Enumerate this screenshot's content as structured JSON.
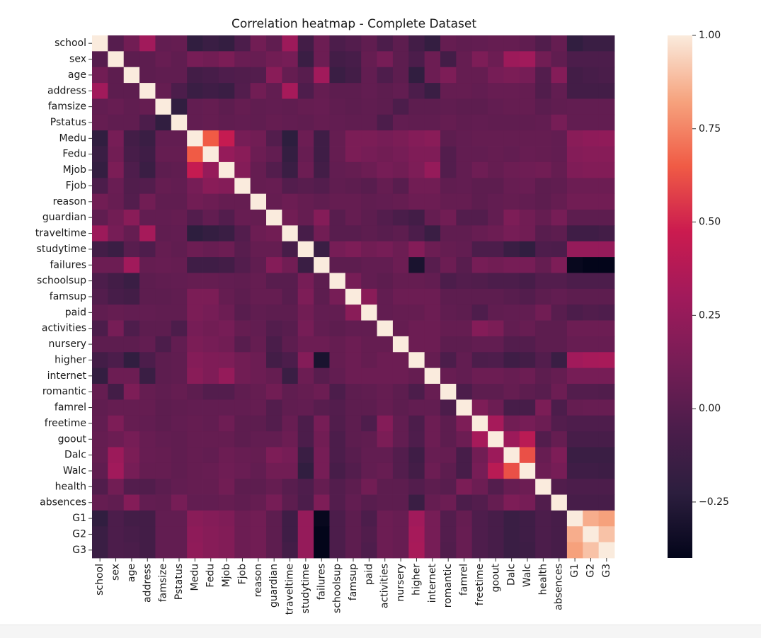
{
  "chart_data": {
    "type": "heatmap",
    "title": "Correlation heatmap - Complete Dataset",
    "xlabel": "",
    "ylabel": "",
    "labels": [
      "school",
      "sex",
      "age",
      "address",
      "famsize",
      "Pstatus",
      "Medu",
      "Fedu",
      "Mjob",
      "Fjob",
      "reason",
      "guardian",
      "traveltime",
      "studytime",
      "failures",
      "schoolsup",
      "famsup",
      "paid",
      "activities",
      "nursery",
      "higher",
      "internet",
      "romantic",
      "famrel",
      "freetime",
      "goout",
      "Dalc",
      "Walc",
      "health",
      "absences",
      "G1",
      "G2",
      "G3"
    ],
    "vmin": -0.4,
    "vmax": 1.0,
    "colorbar_ticks": [
      1.0,
      0.75,
      0.5,
      0.25,
      0.0,
      -0.25
    ],
    "colorbar_tick_labels": [
      "1.00",
      "0.75",
      "0.50",
      "0.25",
      "0.00",
      "−0.25"
    ],
    "values": [
      [
        1.0,
        -0.01,
        0.1,
        0.3,
        0.04,
        0.05,
        -0.2,
        -0.15,
        -0.18,
        -0.05,
        0.1,
        0.03,
        0.28,
        -0.1,
        0.08,
        -0.05,
        -0.02,
        0.03,
        -0.05,
        0.02,
        -0.1,
        -0.18,
        0.05,
        0.03,
        0.04,
        0.05,
        0.05,
        0.03,
        -0.03,
        0.05,
        -0.2,
        -0.15,
        -0.15
      ],
      [
        -0.01,
        1.0,
        0.02,
        0.02,
        0.06,
        0.03,
        0.12,
        0.1,
        0.14,
        0.07,
        0.06,
        0.1,
        0.12,
        -0.15,
        0.08,
        -0.1,
        -0.08,
        0.05,
        0.12,
        0.02,
        -0.05,
        0.08,
        -0.1,
        0.05,
        0.15,
        0.08,
        0.28,
        0.3,
        0.1,
        0.03,
        -0.05,
        -0.05,
        -0.05
      ],
      [
        0.1,
        0.02,
        1.0,
        0.02,
        0.03,
        0.03,
        -0.1,
        -0.08,
        -0.04,
        -0.03,
        -0.02,
        0.2,
        0.05,
        0.0,
        0.3,
        -0.15,
        -0.1,
        0.04,
        -0.04,
        0.02,
        -0.2,
        0.08,
        0.15,
        0.05,
        0.05,
        0.12,
        0.14,
        0.12,
        -0.02,
        0.18,
        -0.1,
        -0.08,
        -0.06
      ],
      [
        0.3,
        0.02,
        0.02,
        1.0,
        0.05,
        -0.05,
        -0.15,
        -0.12,
        -0.15,
        -0.02,
        0.1,
        0.04,
        0.32,
        -0.04,
        0.05,
        0.02,
        0.02,
        0.04,
        0.02,
        0.04,
        -0.05,
        -0.15,
        0.05,
        0.05,
        0.04,
        0.06,
        0.06,
        0.05,
        -0.03,
        0.04,
        -0.1,
        -0.1,
        -0.1
      ],
      [
        0.04,
        0.06,
        0.03,
        0.05,
        1.0,
        -0.2,
        0.04,
        0.05,
        0.02,
        0.05,
        0.03,
        0.04,
        0.03,
        0.05,
        0.06,
        0.03,
        0.02,
        0.03,
        0.02,
        -0.05,
        0.02,
        0.02,
        0.03,
        0.02,
        0.02,
        0.04,
        0.05,
        0.05,
        0.01,
        0.03,
        0.04,
        0.04,
        0.04
      ],
      [
        0.05,
        0.03,
        0.03,
        -0.05,
        -0.2,
        1.0,
        0.04,
        0.05,
        0.03,
        0.04,
        0.03,
        0.05,
        0.04,
        0.03,
        0.05,
        0.04,
        0.03,
        0.03,
        -0.05,
        0.04,
        0.03,
        0.03,
        0.05,
        0.03,
        0.04,
        0.03,
        0.03,
        0.03,
        0.04,
        0.12,
        0.04,
        0.04,
        0.04
      ],
      [
        -0.2,
        0.12,
        -0.1,
        -0.15,
        0.04,
        0.04,
        1.0,
        0.65,
        0.45,
        0.12,
        0.1,
        -0.02,
        -0.22,
        0.08,
        -0.12,
        0.05,
        0.14,
        0.14,
        0.12,
        0.14,
        0.18,
        0.2,
        0.02,
        0.04,
        0.05,
        0.05,
        0.05,
        0.05,
        0.05,
        0.04,
        0.2,
        0.22,
        0.23
      ],
      [
        -0.15,
        0.1,
        -0.08,
        -0.12,
        0.05,
        0.05,
        0.65,
        1.0,
        0.25,
        0.2,
        0.08,
        0.04,
        -0.18,
        0.06,
        -0.12,
        0.05,
        0.14,
        0.12,
        0.1,
        0.12,
        0.16,
        0.16,
        -0.02,
        0.04,
        0.04,
        0.05,
        0.04,
        0.06,
        0.05,
        0.04,
        0.18,
        0.19,
        0.19
      ],
      [
        -0.18,
        0.14,
        -0.04,
        -0.15,
        0.02,
        0.03,
        0.45,
        0.25,
        1.0,
        0.18,
        0.05,
        -0.02,
        -0.15,
        0.08,
        -0.1,
        0.04,
        0.05,
        0.08,
        0.12,
        0.1,
        0.15,
        0.25,
        -0.02,
        0.04,
        0.09,
        0.05,
        0.08,
        0.09,
        0.1,
        0.05,
        0.16,
        0.17,
        0.17
      ],
      [
        -0.05,
        0.07,
        -0.03,
        -0.02,
        0.05,
        0.04,
        0.12,
        0.2,
        0.18,
        1.0,
        0.05,
        0.06,
        -0.02,
        0.0,
        -0.02,
        0.03,
        0.02,
        0.0,
        0.05,
        0.0,
        0.1,
        0.1,
        0.03,
        0.04,
        0.02,
        0.02,
        0.06,
        0.07,
        0.02,
        0.03,
        0.08,
        0.08,
        0.08
      ],
      [
        0.1,
        0.06,
        -0.02,
        0.1,
        0.03,
        0.03,
        0.1,
        0.08,
        0.05,
        0.05,
        1.0,
        0.05,
        0.08,
        0.05,
        0.03,
        0.05,
        0.05,
        0.03,
        0.04,
        0.05,
        0.08,
        0.08,
        0.05,
        0.05,
        0.02,
        0.04,
        0.05,
        0.04,
        0.02,
        0.05,
        0.1,
        0.1,
        0.1
      ],
      [
        0.03,
        0.1,
        0.2,
        0.04,
        0.04,
        0.05,
        -0.02,
        0.04,
        -0.02,
        0.06,
        0.05,
        1.0,
        0.1,
        0.05,
        0.18,
        0.0,
        0.05,
        0.02,
        -0.02,
        -0.06,
        -0.1,
        0.05,
        0.1,
        -0.02,
        -0.02,
        0.04,
        0.15,
        0.1,
        0.05,
        0.12,
        0.02,
        0.02,
        0.02
      ],
      [
        0.28,
        0.12,
        0.05,
        0.32,
        0.03,
        0.04,
        -0.22,
        -0.18,
        -0.15,
        -0.02,
        0.08,
        0.1,
        1.0,
        -0.08,
        0.1,
        0.0,
        0.0,
        0.02,
        0.0,
        0.02,
        -0.05,
        -0.15,
        0.03,
        0.03,
        0.06,
        0.08,
        0.12,
        0.1,
        0.0,
        0.02,
        -0.12,
        -0.12,
        -0.1
      ],
      [
        -0.1,
        -0.15,
        0.0,
        -0.04,
        0.05,
        0.03,
        0.08,
        0.06,
        0.08,
        0.0,
        0.05,
        0.05,
        -0.08,
        1.0,
        -0.15,
        0.12,
        0.15,
        0.1,
        0.12,
        0.08,
        0.18,
        0.08,
        0.05,
        0.04,
        -0.05,
        -0.05,
        -0.15,
        -0.2,
        -0.04,
        -0.05,
        0.25,
        0.25,
        0.25
      ],
      [
        0.08,
        0.08,
        0.3,
        0.05,
        0.06,
        0.05,
        -0.12,
        -0.12,
        -0.1,
        -0.02,
        0.03,
        0.18,
        0.1,
        -0.15,
        1.0,
        0.02,
        0.02,
        0.04,
        0.04,
        0.08,
        -0.3,
        0.0,
        0.08,
        0.0,
        0.12,
        0.1,
        0.12,
        0.12,
        0.05,
        0.15,
        -0.38,
        -0.4,
        -0.4
      ],
      [
        -0.05,
        -0.1,
        -0.15,
        0.02,
        0.03,
        0.04,
        0.05,
        0.05,
        0.04,
        0.03,
        0.05,
        0.0,
        0.0,
        0.12,
        0.02,
        1.0,
        0.12,
        0.04,
        0.02,
        0.05,
        0.05,
        0.04,
        -0.05,
        -0.02,
        -0.03,
        -0.05,
        -0.05,
        -0.08,
        -0.02,
        -0.02,
        -0.05,
        -0.05,
        -0.05
      ],
      [
        -0.02,
        -0.08,
        -0.1,
        0.02,
        0.02,
        0.03,
        0.14,
        0.14,
        0.05,
        0.02,
        0.05,
        0.05,
        0.0,
        0.15,
        0.02,
        0.12,
        1.0,
        0.2,
        0.04,
        0.08,
        0.08,
        0.08,
        0.02,
        0.02,
        0.02,
        0.02,
        0.0,
        -0.02,
        0.02,
        0.04,
        0.02,
        0.02,
        0.02
      ],
      [
        0.03,
        0.05,
        0.04,
        0.04,
        0.03,
        0.03,
        0.14,
        0.12,
        0.08,
        0.0,
        0.03,
        0.02,
        0.02,
        0.1,
        0.04,
        0.04,
        0.2,
        1.0,
        0.04,
        0.05,
        0.05,
        0.08,
        0.03,
        0.02,
        -0.04,
        0.03,
        0.04,
        0.04,
        0.1,
        0.0,
        -0.05,
        -0.03,
        -0.04
      ],
      [
        -0.05,
        0.12,
        -0.04,
        0.02,
        0.02,
        -0.05,
        0.12,
        0.1,
        0.12,
        0.05,
        0.04,
        -0.02,
        0.0,
        0.12,
        0.04,
        0.02,
        0.04,
        0.04,
        1.0,
        0.05,
        0.08,
        0.08,
        0.05,
        0.05,
        0.18,
        0.14,
        0.04,
        0.06,
        0.02,
        0.02,
        0.08,
        0.08,
        0.08
      ],
      [
        0.02,
        0.02,
        0.02,
        0.04,
        -0.05,
        0.04,
        0.14,
        0.12,
        0.1,
        0.0,
        0.05,
        -0.06,
        0.02,
        0.08,
        0.08,
        0.05,
        0.08,
        0.05,
        0.05,
        1.0,
        0.08,
        0.08,
        0.02,
        0.02,
        0.04,
        0.04,
        -0.02,
        -0.02,
        0.02,
        0.02,
        0.06,
        0.06,
        0.06
      ],
      [
        -0.1,
        -0.05,
        -0.2,
        -0.05,
        0.02,
        0.03,
        0.18,
        0.16,
        0.15,
        0.1,
        0.08,
        -0.1,
        -0.05,
        0.18,
        -0.3,
        0.05,
        0.08,
        0.05,
        0.08,
        0.08,
        1.0,
        0.05,
        -0.05,
        0.04,
        -0.05,
        -0.04,
        -0.12,
        -0.1,
        -0.02,
        -0.15,
        0.3,
        0.32,
        0.33
      ],
      [
        -0.18,
        0.08,
        0.08,
        -0.15,
        0.02,
        0.03,
        0.2,
        0.16,
        0.25,
        0.1,
        0.08,
        0.05,
        -0.15,
        0.08,
        0.0,
        0.04,
        0.08,
        0.08,
        0.08,
        0.08,
        0.05,
        1.0,
        0.06,
        0.04,
        0.08,
        0.08,
        0.06,
        0.08,
        0.02,
        0.05,
        0.12,
        0.12,
        0.12
      ],
      [
        0.05,
        -0.1,
        0.15,
        0.05,
        0.03,
        0.05,
        0.02,
        -0.02,
        -0.02,
        0.03,
        0.05,
        0.1,
        0.03,
        0.05,
        0.08,
        -0.05,
        0.02,
        0.03,
        0.05,
        0.02,
        -0.05,
        0.06,
        1.0,
        -0.05,
        0.02,
        0.02,
        0.05,
        0.02,
        0.0,
        0.08,
        -0.02,
        -0.02,
        -0.03
      ],
      [
        0.03,
        0.05,
        0.05,
        0.05,
        0.02,
        0.03,
        0.04,
        0.04,
        0.04,
        0.04,
        0.05,
        -0.02,
        0.03,
        0.04,
        0.0,
        -0.02,
        0.02,
        0.02,
        0.05,
        0.02,
        0.04,
        0.04,
        -0.05,
        1.0,
        0.15,
        0.08,
        -0.08,
        -0.08,
        0.14,
        -0.05,
        0.05,
        0.06,
        0.06
      ],
      [
        0.04,
        0.15,
        0.05,
        0.04,
        0.02,
        0.04,
        0.05,
        0.04,
        0.09,
        0.02,
        0.02,
        -0.02,
        0.06,
        -0.05,
        0.12,
        -0.03,
        0.02,
        -0.04,
        0.18,
        0.04,
        -0.05,
        0.08,
        0.02,
        0.15,
        1.0,
        0.32,
        0.1,
        0.12,
        0.08,
        -0.02,
        -0.04,
        -0.04,
        -0.04
      ],
      [
        0.05,
        0.08,
        0.12,
        0.06,
        0.04,
        0.03,
        0.05,
        0.05,
        0.05,
        0.02,
        0.04,
        0.04,
        0.08,
        -0.05,
        0.1,
        -0.05,
        0.02,
        0.03,
        0.14,
        0.04,
        -0.04,
        0.08,
        0.02,
        0.08,
        0.32,
        1.0,
        0.28,
        0.4,
        -0.02,
        0.05,
        -0.08,
        -0.08,
        -0.08
      ],
      [
        0.05,
        0.28,
        0.14,
        0.06,
        0.05,
        0.03,
        0.05,
        0.04,
        0.08,
        0.06,
        0.05,
        0.15,
        0.12,
        -0.15,
        0.12,
        -0.05,
        0.0,
        0.04,
        0.04,
        -0.02,
        -0.12,
        0.06,
        0.05,
        -0.08,
        0.1,
        0.28,
        1.0,
        0.62,
        0.06,
        0.15,
        -0.15,
        -0.15,
        -0.15
      ],
      [
        0.03,
        0.3,
        0.12,
        0.05,
        0.05,
        0.03,
        0.05,
        0.06,
        0.09,
        0.07,
        0.04,
        0.1,
        0.1,
        -0.2,
        0.12,
        -0.08,
        -0.02,
        0.04,
        0.06,
        -0.02,
        -0.1,
        0.08,
        0.02,
        -0.08,
        0.12,
        0.4,
        0.62,
        1.0,
        0.08,
        0.12,
        -0.12,
        -0.12,
        -0.13
      ],
      [
        -0.03,
        0.1,
        -0.02,
        -0.03,
        0.01,
        0.04,
        0.05,
        0.05,
        0.1,
        0.02,
        0.02,
        0.05,
        0.0,
        -0.04,
        0.05,
        -0.02,
        0.02,
        0.1,
        0.02,
        0.02,
        -0.02,
        0.02,
        0.0,
        0.14,
        0.08,
        -0.02,
        0.06,
        0.08,
        1.0,
        -0.03,
        -0.05,
        -0.05,
        -0.05
      ],
      [
        0.05,
        0.03,
        0.18,
        0.04,
        0.03,
        0.12,
        0.04,
        0.04,
        0.05,
        0.03,
        0.05,
        0.12,
        0.02,
        -0.05,
        0.15,
        -0.02,
        0.04,
        0.0,
        0.02,
        0.02,
        -0.15,
        0.05,
        0.08,
        -0.05,
        -0.02,
        0.05,
        0.15,
        0.12,
        -0.03,
        1.0,
        -0.08,
        -0.08,
        -0.08
      ],
      [
        -0.2,
        -0.05,
        -0.1,
        -0.1,
        0.04,
        0.04,
        0.2,
        0.18,
        0.16,
        0.08,
        0.1,
        0.02,
        -0.12,
        0.25,
        -0.38,
        -0.05,
        0.02,
        -0.05,
        0.08,
        0.06,
        0.3,
        0.12,
        -0.02,
        0.05,
        -0.04,
        -0.08,
        -0.15,
        -0.12,
        -0.05,
        -0.08,
        1.0,
        0.85,
        0.82
      ],
      [
        -0.15,
        -0.05,
        -0.08,
        -0.1,
        0.04,
        0.04,
        0.22,
        0.19,
        0.17,
        0.08,
        0.1,
        0.02,
        -0.12,
        0.25,
        -0.4,
        -0.05,
        0.02,
        -0.03,
        0.08,
        0.06,
        0.32,
        0.12,
        -0.02,
        0.06,
        -0.04,
        -0.08,
        -0.15,
        -0.12,
        -0.05,
        -0.08,
        0.85,
        1.0,
        0.9
      ],
      [
        -0.15,
        -0.05,
        -0.06,
        -0.1,
        0.04,
        0.04,
        0.23,
        0.19,
        0.17,
        0.08,
        0.1,
        0.02,
        -0.1,
        0.25,
        -0.4,
        -0.05,
        0.02,
        -0.04,
        0.08,
        0.06,
        0.33,
        0.12,
        -0.03,
        0.06,
        -0.04,
        -0.08,
        -0.15,
        -0.13,
        -0.05,
        -0.08,
        0.82,
        0.9,
        1.0
      ]
    ]
  }
}
